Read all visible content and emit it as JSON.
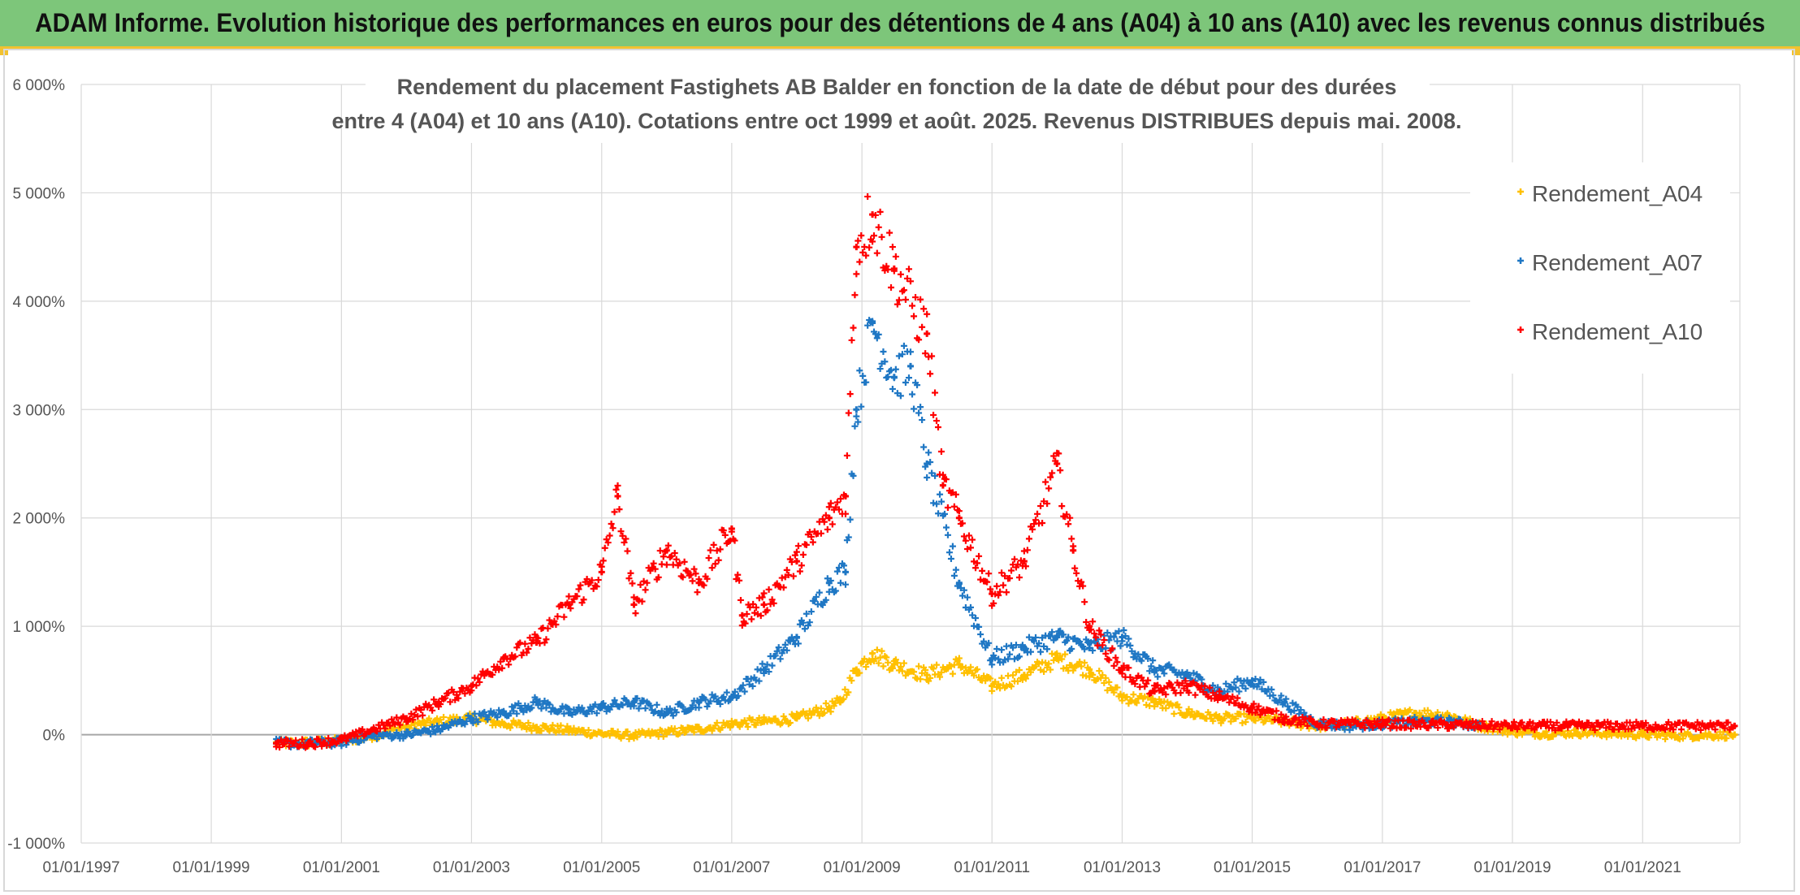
{
  "banner": {
    "title": "ADAM Informe. Evolution historique des performances en euros pour des détentions de 4 ans (A04) à 10 ans (A10) avec les revenus connus distribués"
  },
  "colors": {
    "banner_bg": "#7dc67a",
    "accent": "#f2c230",
    "A04": "#ffc000",
    "A07": "#1f77c4",
    "A10": "#ff0000"
  },
  "chart_data": {
    "type": "scatter",
    "title_lines": [
      "Rendement du placement Fastighets AB Balder en fonction de la date de début pour des durées",
      "entre 4 (A04) et 10 ans (A10). Cotations entre oct 1999 et août. 2025. Revenus DISTRIBUES depuis mai. 2008."
    ],
    "x_axis": {
      "type": "date",
      "min": "1997-01-01",
      "max": "2022-07-01",
      "tick_labels": [
        "01/01/1997",
        "01/01/1999",
        "01/01/2001",
        "01/01/2003",
        "01/01/2005",
        "01/01/2007",
        "01/01/2009",
        "01/01/2011",
        "01/01/2013",
        "01/01/2015",
        "01/01/2017",
        "01/01/2019",
        "01/01/2021"
      ]
    },
    "y_axis": {
      "min": -1000,
      "max": 6000,
      "unit": "%",
      "tick_values": [
        -1000,
        0,
        1000,
        2000,
        3000,
        4000,
        5000,
        6000
      ],
      "tick_labels": [
        "-1 000%",
        "0%",
        "1 000%",
        "2 000%",
        "3 000%",
        "4 000%",
        "5 000%",
        "6 000%"
      ]
    },
    "grid": true,
    "legend_position": "top-right",
    "marker": "+",
    "series": [
      {
        "name": "Rendement_A04",
        "color": "#ffc000",
        "points": [
          [
            "2000-01-01",
            -80
          ],
          [
            "2000-07-01",
            -75
          ],
          [
            "2001-01-01",
            -60
          ],
          [
            "2001-07-01",
            -10
          ],
          [
            "2002-01-01",
            80
          ],
          [
            "2002-07-01",
            120
          ],
          [
            "2003-01-01",
            150
          ],
          [
            "2003-07-01",
            100
          ],
          [
            "2004-01-01",
            70
          ],
          [
            "2004-07-01",
            40
          ],
          [
            "2005-01-01",
            10
          ],
          [
            "2005-07-01",
            -10
          ],
          [
            "2006-01-01",
            20
          ],
          [
            "2006-07-01",
            50
          ],
          [
            "2007-01-01",
            100
          ],
          [
            "2007-07-01",
            120
          ],
          [
            "2008-01-01",
            150
          ],
          [
            "2008-07-01",
            250
          ],
          [
            "2008-09-01",
            300
          ],
          [
            "2008-12-01",
            600
          ],
          [
            "2009-03-01",
            750
          ],
          [
            "2009-07-01",
            650
          ],
          [
            "2010-01-01",
            550
          ],
          [
            "2010-07-01",
            650
          ],
          [
            "2011-01-01",
            450
          ],
          [
            "2011-07-01",
            550
          ],
          [
            "2012-01-01",
            700
          ],
          [
            "2012-07-01",
            600
          ],
          [
            "2013-01-01",
            350
          ],
          [
            "2013-07-01",
            300
          ],
          [
            "2014-01-01",
            200
          ],
          [
            "2014-07-01",
            150
          ],
          [
            "2015-01-01",
            150
          ],
          [
            "2015-07-01",
            120
          ],
          [
            "2016-01-01",
            80
          ],
          [
            "2016-07-01",
            100
          ],
          [
            "2017-01-01",
            150
          ],
          [
            "2017-07-01",
            200
          ],
          [
            "2018-01-01",
            180
          ],
          [
            "2018-07-01",
            80
          ],
          [
            "2019-01-01",
            30
          ],
          [
            "2019-07-01",
            10
          ],
          [
            "2020-01-01",
            20
          ],
          [
            "2020-07-01",
            10
          ],
          [
            "2021-01-01",
            0
          ],
          [
            "2021-07-01",
            -10
          ],
          [
            "2022-06-01",
            0
          ]
        ]
      },
      {
        "name": "Rendement_A07",
        "color": "#1f77c4",
        "points": [
          [
            "2000-01-01",
            -80
          ],
          [
            "2000-07-01",
            -80
          ],
          [
            "2001-01-01",
            -70
          ],
          [
            "2001-07-01",
            -10
          ],
          [
            "2002-01-01",
            0
          ],
          [
            "2002-07-01",
            50
          ],
          [
            "2003-01-01",
            150
          ],
          [
            "2003-07-01",
            200
          ],
          [
            "2004-01-01",
            300
          ],
          [
            "2004-07-01",
            200
          ],
          [
            "2005-01-01",
            250
          ],
          [
            "2005-07-01",
            300
          ],
          [
            "2006-01-01",
            200
          ],
          [
            "2006-07-01",
            300
          ],
          [
            "2007-01-01",
            350
          ],
          [
            "2007-07-01",
            600
          ],
          [
            "2008-01-01",
            900
          ],
          [
            "2008-07-01",
            1400
          ],
          [
            "2008-10-01",
            1500
          ],
          [
            "2008-12-01",
            3000
          ],
          [
            "2009-03-01",
            3800
          ],
          [
            "2009-07-01",
            3300
          ],
          [
            "2009-10-01",
            3400
          ],
          [
            "2010-01-01",
            2500
          ],
          [
            "2010-07-01",
            1400
          ],
          [
            "2011-01-01",
            700
          ],
          [
            "2011-07-01",
            800
          ],
          [
            "2012-01-01",
            900
          ],
          [
            "2012-07-01",
            800
          ],
          [
            "2013-01-01",
            900
          ],
          [
            "2013-07-01",
            600
          ],
          [
            "2014-01-01",
            550
          ],
          [
            "2014-07-01",
            400
          ],
          [
            "2015-01-01",
            500
          ],
          [
            "2015-07-01",
            300
          ],
          [
            "2016-01-01",
            100
          ],
          [
            "2016-07-01",
            80
          ],
          [
            "2017-01-01",
            100
          ],
          [
            "2017-07-01",
            120
          ],
          [
            "2018-01-01",
            120
          ],
          [
            "2018-07-01",
            80
          ]
        ]
      },
      {
        "name": "Rendement_A10",
        "color": "#ff0000",
        "points": [
          [
            "2000-01-01",
            -80
          ],
          [
            "2000-07-01",
            -80
          ],
          [
            "2001-01-01",
            -50
          ],
          [
            "2001-07-01",
            50
          ],
          [
            "2002-01-01",
            150
          ],
          [
            "2002-07-01",
            300
          ],
          [
            "2003-01-01",
            450
          ],
          [
            "2003-07-01",
            700
          ],
          [
            "2004-01-01",
            850
          ],
          [
            "2004-07-01",
            1200
          ],
          [
            "2005-01-01",
            1500
          ],
          [
            "2005-04-01",
            2200
          ],
          [
            "2005-07-01",
            1200
          ],
          [
            "2006-01-01",
            1700
          ],
          [
            "2006-07-01",
            1400
          ],
          [
            "2007-01-01",
            1900
          ],
          [
            "2007-03-01",
            1100
          ],
          [
            "2007-07-01",
            1200
          ],
          [
            "2008-01-01",
            1600
          ],
          [
            "2008-07-01",
            2000
          ],
          [
            "2008-10-01",
            2200
          ],
          [
            "2008-12-01",
            4500
          ],
          [
            "2009-03-01",
            4800
          ],
          [
            "2009-07-01",
            4300
          ],
          [
            "2010-01-01",
            3700
          ],
          [
            "2010-04-01",
            2300
          ],
          [
            "2010-07-01",
            2000
          ],
          [
            "2011-01-01",
            1300
          ],
          [
            "2011-07-01",
            1600
          ],
          [
            "2012-01-01",
            2500
          ],
          [
            "2012-04-01",
            1700
          ],
          [
            "2012-07-01",
            1000
          ],
          [
            "2013-01-01",
            600
          ],
          [
            "2013-07-01",
            400
          ],
          [
            "2014-01-01",
            450
          ],
          [
            "2014-07-01",
            350
          ],
          [
            "2015-01-01",
            250
          ],
          [
            "2015-07-01",
            150
          ],
          [
            "2016-01-01",
            100
          ],
          [
            "2017-01-01",
            100
          ],
          [
            "2018-01-01",
            90
          ],
          [
            "2019-01-01",
            80
          ],
          [
            "2020-01-01",
            80
          ],
          [
            "2021-01-01",
            80
          ],
          [
            "2022-06-01",
            80
          ]
        ]
      }
    ]
  }
}
